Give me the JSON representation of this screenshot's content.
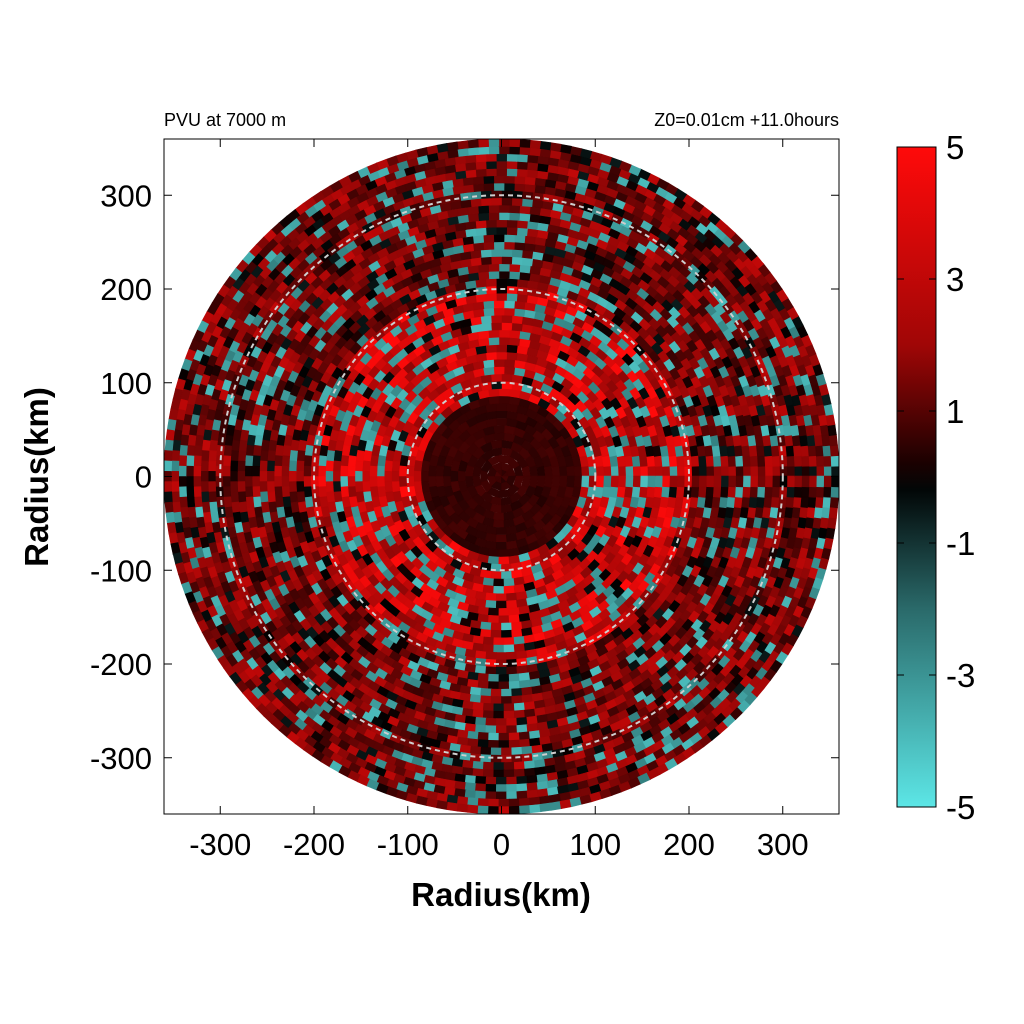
{
  "chart_data": {
    "type": "heatmap",
    "title_left": "PVU at  7000 m",
    "title_right": "Z0=0.01cm  +11.0hours",
    "xlabel": "Radius(km)",
    "ylabel": "Radius(km)",
    "xlim": [
      -360,
      360
    ],
    "ylim": [
      -360,
      360
    ],
    "x_ticks": [
      -300,
      -200,
      -100,
      0,
      100,
      200,
      300
    ],
    "y_ticks": [
      -300,
      -200,
      -100,
      0,
      100,
      200,
      300
    ],
    "x_tick_labels": [
      "-300",
      "-200",
      "-100",
      "0",
      "100",
      "200",
      "300"
    ],
    "y_tick_labels": [
      "-300",
      "-200",
      "-100",
      "0",
      "100",
      "200",
      "300"
    ],
    "data_radius_km": 360,
    "reference_circles_km": [
      100,
      200,
      300
    ],
    "reference_circle_style": "dashed light gray",
    "colorbar": {
      "min": -5,
      "max": 5,
      "ticks": [
        5,
        3,
        1,
        -1,
        -3,
        -5
      ],
      "tick_labels": [
        "5",
        "3",
        "1",
        "-1",
        "-3",
        "-5"
      ],
      "colors": {
        "high": "#ff0a0a",
        "mid": "#000000",
        "low": "#5ce6e6"
      }
    },
    "field_description": {
      "eye_radius_km": 90,
      "eye_value_approx": 0.8,
      "eyewall_ring_km": [
        100,
        200
      ],
      "eyewall_peak_value": 5,
      "outer_band_value_approx": 2,
      "negative_patches_value": -4
    }
  }
}
